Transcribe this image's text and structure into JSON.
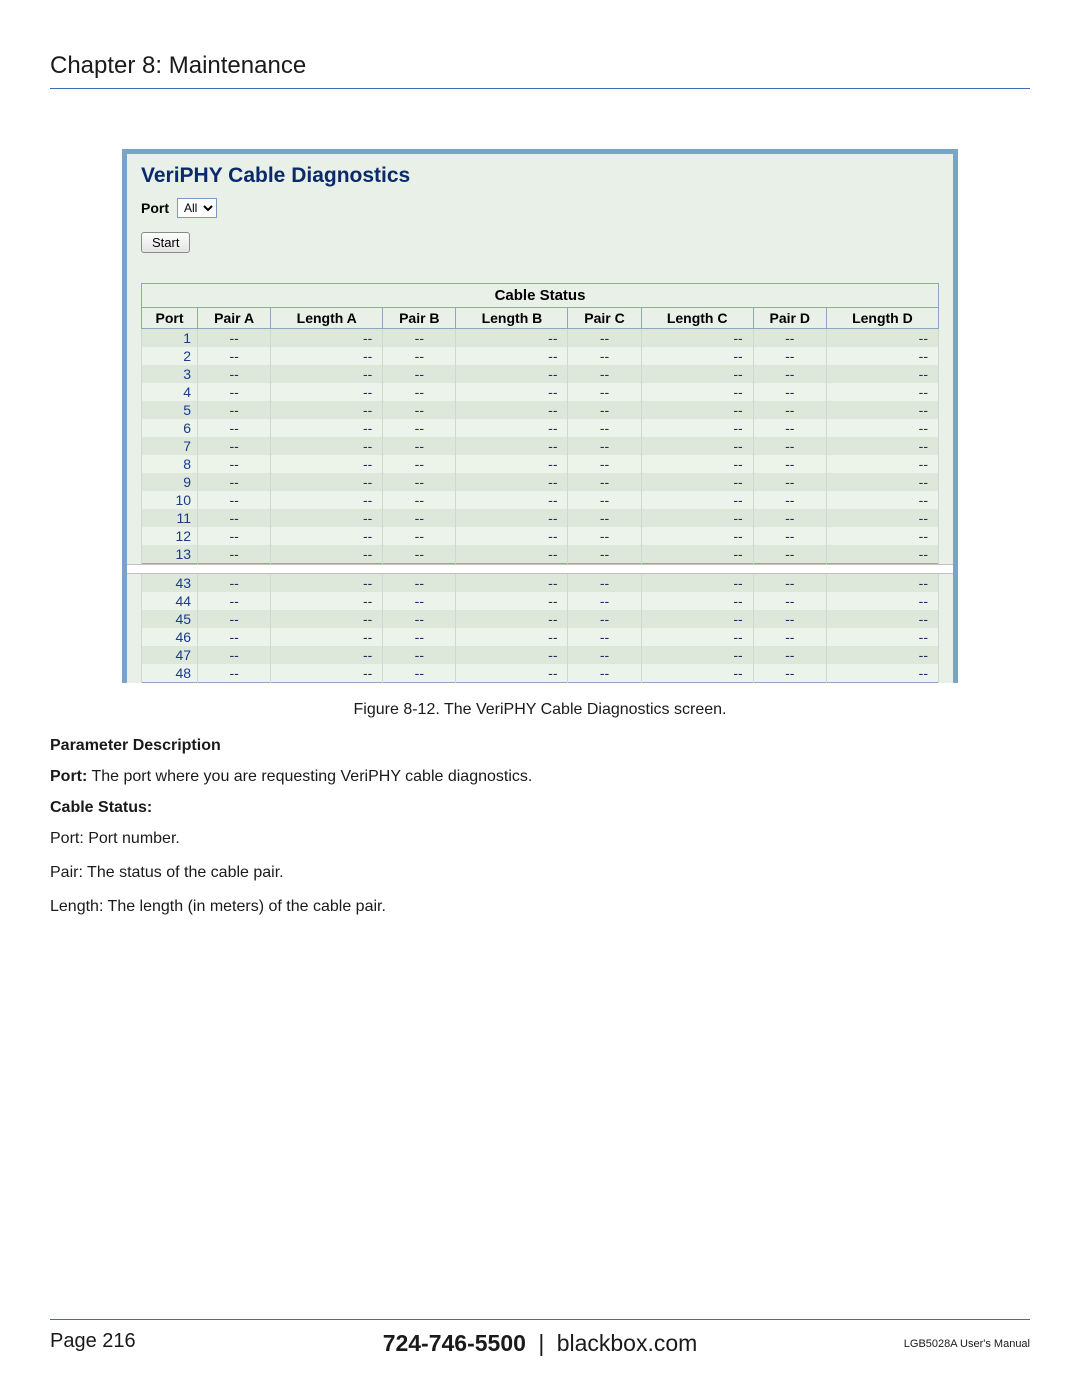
{
  "chapter_title": "Chapter 8: Maintenance",
  "screenshot": {
    "title": "VeriPHY Cable Diagnostics",
    "port_label": "Port",
    "port_select_value": "All",
    "start_label": "Start",
    "table_title": "Cable Status",
    "columns": [
      "Port",
      "Pair A",
      "Length A",
      "Pair B",
      "Length B",
      "Pair C",
      "Length C",
      "Pair D",
      "Length D"
    ],
    "colors": {
      "frame_border": "#7aa3c8",
      "panel_bg": "#e8f0e8",
      "row_a": "#dde8db",
      "row_b": "#ecf3ea",
      "title_color": "#0b2a6b",
      "cell_border": "#8aa8bf"
    },
    "top_rows": [
      {
        "port": "1"
      },
      {
        "port": "2"
      },
      {
        "port": "3"
      },
      {
        "port": "4"
      },
      {
        "port": "5"
      },
      {
        "port": "6"
      },
      {
        "port": "7"
      },
      {
        "port": "8"
      },
      {
        "port": "9"
      },
      {
        "port": "10"
      },
      {
        "port": "11"
      },
      {
        "port": "12"
      },
      {
        "port": "13"
      }
    ],
    "bottom_rows": [
      {
        "port": "43"
      },
      {
        "port": "44"
      },
      {
        "port": "45"
      },
      {
        "port": "46"
      },
      {
        "port": "47"
      },
      {
        "port": "48"
      }
    ],
    "placeholder": "--"
  },
  "figure_caption": "Figure 8-12. The VeriPHY Cable Diagnostics screen.",
  "parameter_description_heading": "Parameter Description",
  "port_def_label": "Port:",
  "port_def_text": " The port where you are requesting VeriPHY cable diagnostics.",
  "cable_status_heading": "Cable Status:",
  "line_port": "Port: Port number.",
  "line_pair": "Pair: The status of the cable pair.",
  "line_length": "Length: The length (in meters) of the cable pair.",
  "footer": {
    "page_label": "Page 216",
    "phone": "724-746-5500",
    "separator": "|",
    "site": "blackbox.com",
    "manual": "LGB5028A User's Manual"
  }
}
